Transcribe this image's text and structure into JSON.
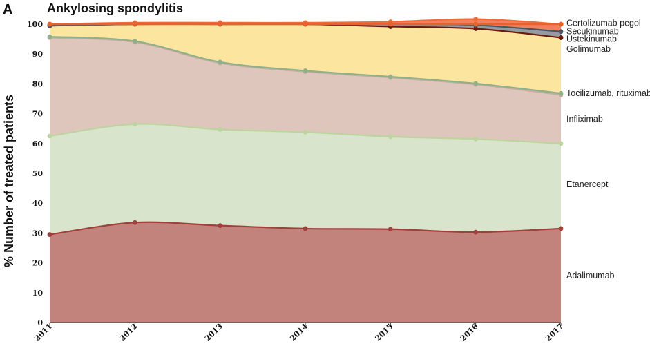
{
  "panel_letter": "A",
  "chart_data": {
    "type": "area",
    "stacked": true,
    "title": "Ankylosing spondylitis",
    "xlabel": "",
    "ylabel": "% Number of treated patients",
    "x": [
      "2011",
      "2012",
      "2013",
      "2014",
      "2015",
      "2016",
      "2017"
    ],
    "ylim": [
      0,
      100
    ],
    "yticks": [
      "0",
      "10",
      "20",
      "30",
      "40",
      "50",
      "60",
      "70",
      "80",
      "90",
      "100"
    ],
    "grid": false,
    "legend": "right-end labels",
    "series": [
      {
        "name": "Adalimumab",
        "values": [
          29.5,
          33.5,
          32.5,
          31.5,
          31.3,
          30.3,
          31.5
        ],
        "fill": "#c07c76",
        "line": "#a0403a"
      },
      {
        "name": "Etanercept",
        "values": [
          33.0,
          33.0,
          32.2,
          32.3,
          31.0,
          31.2,
          28.5
        ],
        "fill": "#d6e3c8",
        "line": "#bcd49e"
      },
      {
        "name": "Infliximab",
        "values": [
          33.0,
          27.5,
          22.3,
          20.3,
          19.8,
          18.3,
          16.3
        ],
        "fill": "#dcc3b8",
        "line": "#c4ae9e"
      },
      {
        "name": "Tocilizumab, rituximab",
        "values": [
          0.3,
          0.3,
          0.3,
          0.3,
          0.3,
          0.3,
          0.5
        ],
        "fill": "#9fbf94",
        "line": "#8fb089"
      },
      {
        "name": "Golimumab",
        "values": [
          3.7,
          5.7,
          12.7,
          15.6,
          16.8,
          18.4,
          18.7
        ],
        "fill": "#fbe49a",
        "line": "#e8c864"
      },
      {
        "name": "Ustekinumab",
        "values": [
          0.0,
          0.0,
          0.0,
          0.0,
          0.0,
          0.0,
          0.0
        ],
        "fill": "#6b1a12",
        "line": "#6b1a12"
      },
      {
        "name": "Secukinumab",
        "values": [
          0.0,
          0.0,
          0.0,
          0.0,
          0.8,
          1.2,
          2.0
        ],
        "fill": "#8c969e",
        "line": "#4b555c"
      },
      {
        "name": "Certolizumab pegol",
        "values": [
          0.5,
          0.5,
          0.5,
          0.5,
          0.8,
          2.0,
          2.5
        ],
        "fill": "#f07a55",
        "line": "#f06a3a"
      }
    ],
    "top_line_color": "#e8622e"
  }
}
